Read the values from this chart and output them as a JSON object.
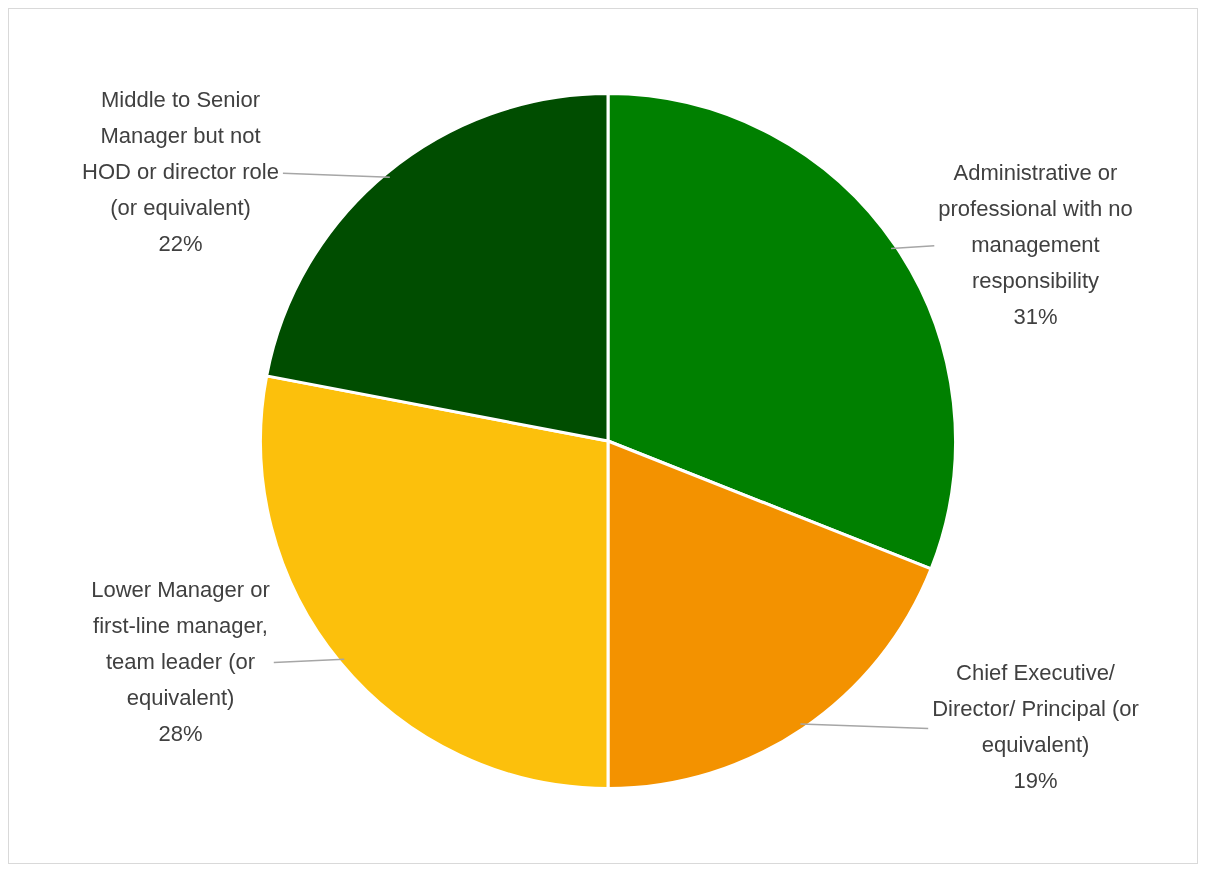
{
  "chart_data": {
    "type": "pie",
    "categories": [
      "Administrative or professional with no management responsibility",
      "Chief Executive/ Director/ Principal (or equivalent)",
      "Lower Manager or first-line manager, team leader (or equivalent)",
      "Middle to Senior Manager but not HOD or director role (or equivalent)"
    ],
    "values": [
      31,
      19,
      28,
      22
    ],
    "colors": [
      "#008000",
      "#f39200",
      "#fcc00c",
      "#004d00"
    ],
    "value_labels": [
      "31%",
      "19%",
      "28%",
      "22%"
    ]
  }
}
